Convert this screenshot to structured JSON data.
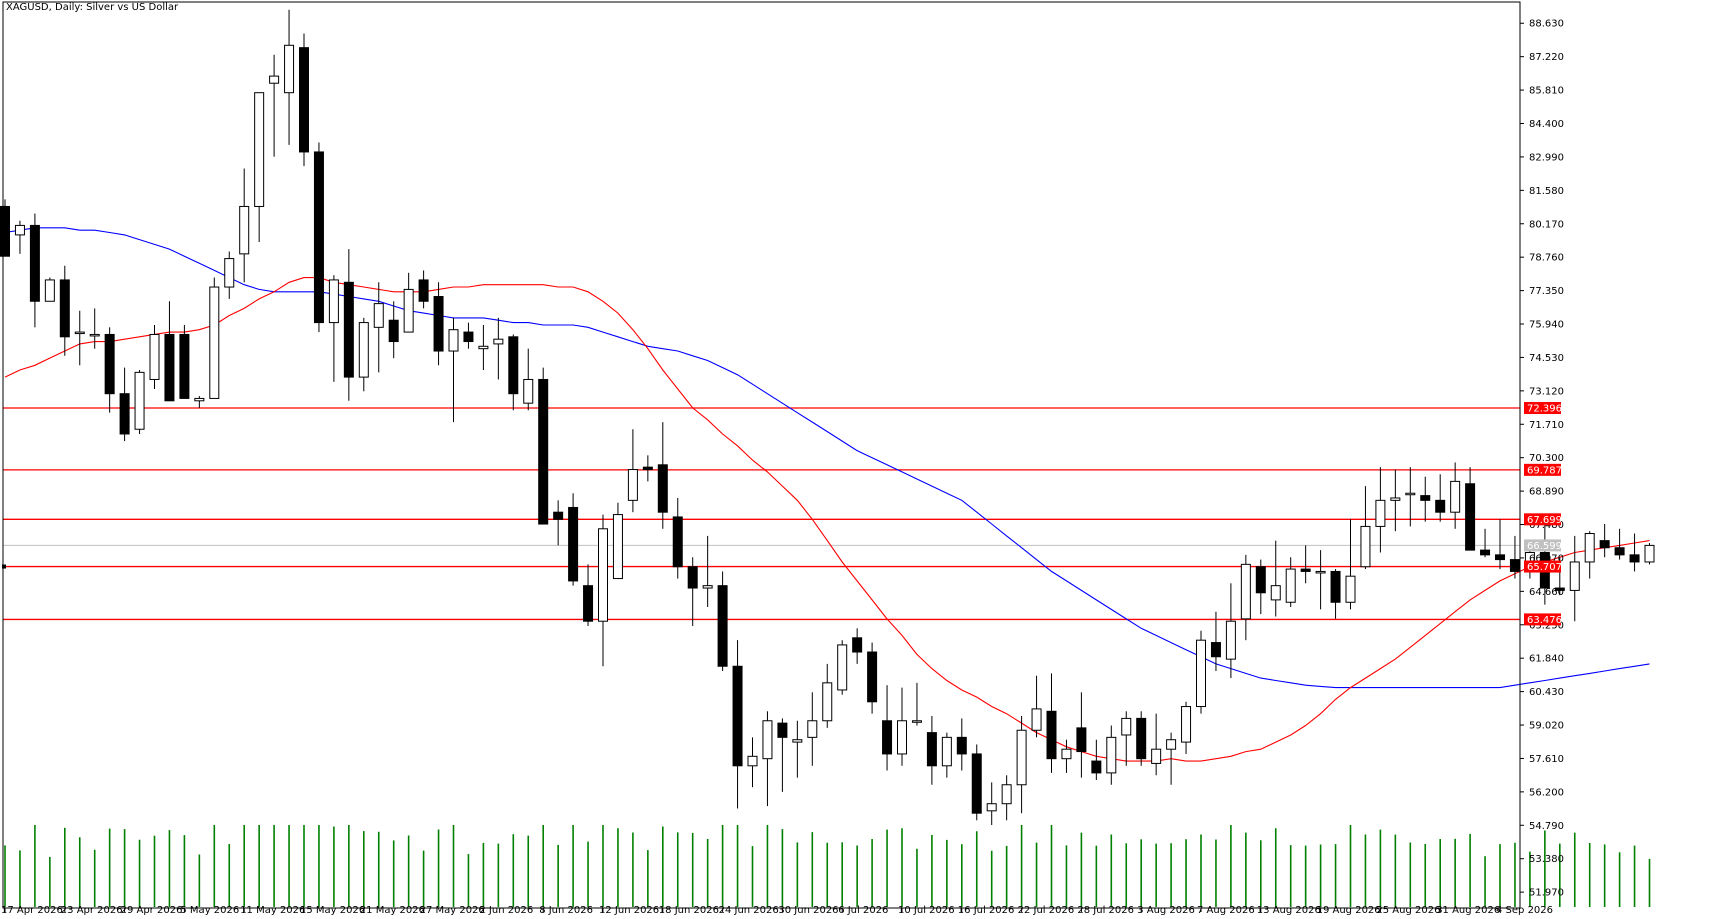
{
  "chart_data": {
    "type": "candlestick",
    "title": "XAGUSD, Daily:  Silver vs US Dollar",
    "colors": {
      "bull_fill": "#ffffff",
      "bear_fill": "#000000",
      "candle_outline": "#000000",
      "ma_fast": "#ff0000",
      "ma_slow": "#0000ff",
      "levels": "#ff0000",
      "bid_line": "#c0c0c0",
      "volume": "#008000"
    },
    "y_axis": {
      "range": [
        51.3,
        89.4
      ],
      "tick_labels": [
        "88.630",
        "87.220",
        "85.810",
        "84.400",
        "82.990",
        "81.580",
        "80.170",
        "78.760",
        "77.350",
        "75.940",
        "74.530",
        "73.120",
        "71.710",
        "70.300",
        "68.890",
        "67.480",
        "66.070",
        "64.660",
        "63.250",
        "61.840",
        "60.430",
        "59.020",
        "57.610",
        "56.200",
        "54.790",
        "53.380",
        "51.970"
      ],
      "tick_values": [
        88.63,
        87.22,
        85.81,
        84.4,
        82.99,
        81.58,
        80.17,
        78.76,
        77.35,
        75.94,
        74.53,
        73.12,
        71.71,
        70.3,
        68.89,
        67.48,
        66.07,
        64.66,
        63.25,
        61.84,
        60.43,
        59.02,
        57.61,
        56.2,
        54.79,
        53.38,
        51.97
      ]
    },
    "x_axis": {
      "tick_labels": [
        "17 Apr 2026",
        "23 Apr 2026",
        "29 Apr 2026",
        "5 May 2026",
        "11 May 2026",
        "15 May 2026",
        "21 May 2026",
        "27 May 2026",
        "2 Jun 2026",
        "8 Jun 2026",
        "12 Jun 2026",
        "18 Jun 2026",
        "24 Jun 2026",
        "30 Jun 2026",
        "6 Jul 2026",
        "10 Jul 2026",
        "16 Jul 2026",
        "22 Jul 2026",
        "28 Jul 2026",
        "3 Aug 2026",
        "7 Aug 2026",
        "13 Aug 2026",
        "19 Aug 2026",
        "25 Aug 2026",
        "31 Aug 2026",
        "4 Sep 2026"
      ],
      "tick_bar_index": [
        0,
        4,
        8,
        12,
        16,
        20,
        24,
        28,
        32,
        36,
        40,
        44,
        48,
        52,
        56,
        60,
        64,
        68,
        72,
        76,
        80,
        84,
        88,
        92,
        96,
        100
      ]
    },
    "horizontal_levels": [
      {
        "label": "72.396",
        "value": 72.396
      },
      {
        "label": "69.787",
        "value": 69.787
      },
      {
        "label": "67.699",
        "value": 67.699
      },
      {
        "label": "65.707",
        "value": 65.707
      },
      {
        "label": "63.476",
        "value": 63.476
      }
    ],
    "bid": {
      "label": "66.599",
      "value": 66.599
    },
    "candles_ohlc": [
      [
        80.9,
        81.2,
        78.8,
        78.8
      ],
      [
        79.7,
        80.3,
        78.9,
        80.1
      ],
      [
        80.1,
        80.6,
        75.8,
        76.9
      ],
      [
        76.9,
        77.9,
        76.9,
        77.8
      ],
      [
        77.8,
        78.4,
        74.6,
        75.4
      ],
      [
        75.6,
        76.5,
        74.2,
        75.6
      ],
      [
        75.5,
        76.6,
        74.9,
        75.5
      ],
      [
        75.5,
        75.8,
        72.2,
        73.0
      ],
      [
        73.0,
        74.1,
        71.0,
        71.3
      ],
      [
        71.5,
        74.0,
        71.3,
        73.9
      ],
      [
        73.6,
        75.9,
        73.2,
        75.5
      ],
      [
        75.5,
        76.9,
        72.8,
        72.7
      ],
      [
        75.5,
        75.9,
        72.8,
        72.8
      ],
      [
        72.7,
        72.9,
        72.4,
        72.8
      ],
      [
        72.8,
        77.9,
        72.8,
        77.5
      ],
      [
        77.5,
        79.0,
        77.0,
        78.7
      ],
      [
        78.9,
        82.5,
        77.7,
        80.9
      ],
      [
        80.9,
        85.0,
        79.4,
        85.7
      ],
      [
        86.1,
        87.3,
        83.0,
        86.4
      ],
      [
        85.7,
        89.2,
        83.5,
        87.7
      ],
      [
        87.6,
        88.2,
        82.6,
        83.2
      ],
      [
        83.2,
        83.6,
        75.6,
        76.0
      ],
      [
        76.0,
        78.0,
        73.5,
        77.8
      ],
      [
        77.7,
        79.1,
        72.7,
        73.7
      ],
      [
        73.7,
        76.2,
        73.1,
        76.0
      ],
      [
        75.8,
        77.7,
        73.9,
        76.8
      ],
      [
        76.1,
        76.9,
        74.5,
        75.2
      ],
      [
        75.6,
        78.1,
        75.6,
        77.4
      ],
      [
        77.8,
        78.2,
        76.6,
        76.9
      ],
      [
        77.1,
        77.7,
        74.2,
        74.8
      ],
      [
        74.8,
        76.2,
        71.8,
        75.7
      ],
      [
        75.6,
        76.0,
        74.9,
        75.2
      ],
      [
        74.9,
        75.9,
        74.0,
        75.0
      ],
      [
        75.1,
        76.2,
        73.6,
        75.3
      ],
      [
        75.4,
        75.5,
        72.3,
        73.0
      ],
      [
        72.6,
        74.9,
        72.3,
        73.6
      ],
      [
        73.6,
        74.1,
        67.5,
        67.5
      ],
      [
        68.0,
        68.5,
        66.6,
        67.7
      ],
      [
        68.2,
        68.8,
        64.9,
        65.1
      ],
      [
        64.9,
        65.8,
        63.2,
        63.4
      ],
      [
        63.4,
        67.9,
        61.5,
        67.3
      ],
      [
        65.2,
        68.4,
        65.2,
        67.9
      ],
      [
        68.5,
        71.5,
        68.0,
        69.8
      ],
      [
        69.9,
        70.4,
        69.3,
        69.8
      ],
      [
        70.0,
        71.8,
        67.3,
        68.0
      ],
      [
        67.8,
        68.6,
        65.2,
        65.7
      ],
      [
        65.7,
        66.1,
        63.2,
        64.8
      ],
      [
        64.8,
        67.0,
        64.0,
        64.9
      ],
      [
        64.9,
        65.5,
        61.3,
        61.5
      ],
      [
        61.5,
        62.6,
        55.5,
        57.3
      ],
      [
        57.3,
        58.5,
        56.4,
        57.7
      ],
      [
        57.6,
        59.6,
        55.6,
        59.2
      ],
      [
        59.1,
        59.3,
        56.2,
        58.5
      ],
      [
        58.3,
        59.2,
        56.8,
        58.4
      ],
      [
        58.5,
        60.4,
        57.3,
        59.2
      ],
      [
        59.2,
        61.6,
        58.9,
        60.8
      ],
      [
        60.5,
        62.6,
        60.3,
        62.4
      ],
      [
        62.7,
        63.1,
        61.6,
        62.1
      ],
      [
        62.1,
        62.5,
        59.5,
        60.0
      ],
      [
        59.2,
        60.7,
        57.1,
        57.8
      ],
      [
        57.8,
        60.6,
        57.3,
        59.2
      ],
      [
        59.2,
        60.8,
        59.0,
        59.2
      ],
      [
        58.7,
        59.4,
        56.5,
        57.3
      ],
      [
        57.3,
        58.7,
        56.8,
        58.5
      ],
      [
        58.5,
        59.3,
        57.1,
        57.8
      ],
      [
        57.8,
        58.2,
        55.0,
        55.3
      ],
      [
        55.4,
        56.6,
        54.8,
        55.7
      ],
      [
        55.7,
        56.9,
        55.0,
        56.5
      ],
      [
        56.5,
        59.4,
        55.3,
        58.8
      ],
      [
        58.8,
        61.1,
        58.5,
        59.7
      ],
      [
        59.6,
        61.2,
        57.0,
        57.6
      ],
      [
        57.6,
        58.4,
        57.0,
        58.0
      ],
      [
        58.9,
        60.4,
        56.8,
        57.9
      ],
      [
        57.5,
        58.4,
        56.7,
        57.0
      ],
      [
        57.0,
        59.0,
        56.5,
        58.5
      ],
      [
        58.6,
        59.6,
        57.3,
        59.3
      ],
      [
        59.3,
        59.6,
        57.3,
        57.6
      ],
      [
        57.4,
        59.5,
        56.9,
        58.0
      ],
      [
        58.0,
        58.7,
        56.5,
        58.4
      ],
      [
        58.3,
        60.0,
        57.8,
        59.8
      ],
      [
        59.8,
        63.0,
        59.5,
        62.6
      ],
      [
        62.5,
        63.8,
        61.3,
        61.9
      ],
      [
        61.8,
        65.0,
        61.0,
        63.4
      ],
      [
        63.5,
        66.2,
        62.6,
        65.8
      ],
      [
        65.7,
        66.0,
        63.7,
        64.6
      ],
      [
        64.3,
        66.8,
        63.6,
        64.9
      ],
      [
        64.2,
        66.1,
        64.0,
        65.6
      ],
      [
        65.6,
        66.6,
        65.0,
        65.5
      ],
      [
        65.5,
        66.4,
        63.9,
        65.5
      ],
      [
        65.5,
        65.6,
        63.5,
        64.2
      ],
      [
        64.2,
        67.7,
        63.9,
        65.3
      ],
      [
        65.7,
        69.1,
        65.6,
        67.4
      ],
      [
        67.4,
        69.9,
        66.3,
        68.5
      ],
      [
        68.5,
        69.8,
        67.2,
        68.6
      ],
      [
        68.8,
        69.9,
        67.4,
        68.8
      ],
      [
        68.7,
        69.5,
        67.6,
        68.5
      ],
      [
        68.5,
        69.6,
        67.6,
        68.0
      ],
      [
        68.0,
        70.1,
        67.3,
        69.3
      ],
      [
        69.2,
        69.9,
        67.0,
        66.4
      ],
      [
        66.4,
        67.3,
        66.1,
        66.2
      ],
      [
        66.2,
        67.7,
        65.6,
        66.0
      ],
      [
        66.0,
        67.0,
        65.2,
        65.5
      ],
      [
        65.5,
        66.8,
        65.2,
        66.3
      ],
      [
        66.3,
        67.6,
        64.1,
        64.8
      ],
      [
        64.8,
        66.1,
        64.5,
        64.7
      ],
      [
        64.7,
        67.0,
        63.4,
        65.9
      ],
      [
        65.9,
        67.2,
        65.2,
        67.1
      ],
      [
        66.8,
        67.5,
        66.1,
        66.5
      ],
      [
        66.5,
        67.3,
        66.0,
        66.2
      ],
      [
        66.2,
        67.1,
        65.5,
        65.9
      ],
      [
        65.9,
        66.7,
        65.8,
        66.6
      ]
    ],
    "ma_fast": [
      73.7,
      74.0,
      74.2,
      74.5,
      74.8,
      75.1,
      75.2,
      75.2,
      75.3,
      75.4,
      75.5,
      75.6,
      75.6,
      75.7,
      75.9,
      76.3,
      76.6,
      77.0,
      77.3,
      77.7,
      77.9,
      77.9,
      77.7,
      77.6,
      77.5,
      77.4,
      77.3,
      77.3,
      77.3,
      77.4,
      77.5,
      77.5,
      77.6,
      77.6,
      77.6,
      77.6,
      77.6,
      77.5,
      77.5,
      77.3,
      76.9,
      76.4,
      75.7,
      74.9,
      74.0,
      73.2,
      72.4,
      71.9,
      71.3,
      70.8,
      70.2,
      69.7,
      69.1,
      68.5,
      67.7,
      66.8,
      65.9,
      65.1,
      64.3,
      63.5,
      62.8,
      62.0,
      61.4,
      60.9,
      60.5,
      60.2,
      59.8,
      59.5,
      59.1,
      58.7,
      58.4,
      58.1,
      57.9,
      57.7,
      57.6,
      57.5,
      57.5,
      57.5,
      57.6,
      57.5,
      57.5,
      57.6,
      57.7,
      57.9,
      58.0,
      58.3,
      58.6,
      59.0,
      59.5,
      60.1,
      60.6,
      61.0,
      61.4,
      61.8,
      62.3,
      62.8,
      63.3,
      63.8,
      64.3,
      64.7,
      65.1,
      65.4,
      65.7,
      65.9,
      66.1,
      66.3,
      66.4,
      66.5,
      66.6,
      66.7,
      66.8
    ],
    "ma_slow": [
      79.8,
      79.9,
      80.0,
      80.0,
      80.0,
      79.9,
      79.9,
      79.8,
      79.7,
      79.5,
      79.3,
      79.1,
      78.8,
      78.5,
      78.2,
      77.9,
      77.6,
      77.4,
      77.3,
      77.3,
      77.3,
      77.3,
      77.2,
      77.1,
      77.0,
      76.9,
      76.7,
      76.5,
      76.4,
      76.3,
      76.2,
      76.2,
      76.2,
      76.1,
      76.0,
      76.0,
      75.9,
      75.9,
      75.9,
      75.8,
      75.6,
      75.4,
      75.2,
      75.0,
      74.9,
      74.8,
      74.6,
      74.4,
      74.1,
      73.8,
      73.4,
      73.0,
      72.6,
      72.2,
      71.8,
      71.4,
      71.0,
      70.6,
      70.3,
      70.0,
      69.7,
      69.4,
      69.1,
      68.8,
      68.5,
      68.0,
      67.5,
      67.0,
      66.5,
      66.0,
      65.5,
      65.1,
      64.7,
      64.3,
      63.9,
      63.5,
      63.1,
      62.8,
      62.5,
      62.2,
      61.9,
      61.6,
      61.4,
      61.2,
      61.0,
      60.9,
      60.8,
      60.7,
      60.65,
      60.6,
      60.6,
      60.6,
      60.6,
      60.6,
      60.6,
      60.6,
      60.6,
      60.6,
      60.6,
      60.6,
      60.6,
      60.7,
      60.8,
      60.9,
      61.0,
      61.1,
      61.2,
      61.3,
      61.4,
      61.5,
      61.6
    ]
  }
}
